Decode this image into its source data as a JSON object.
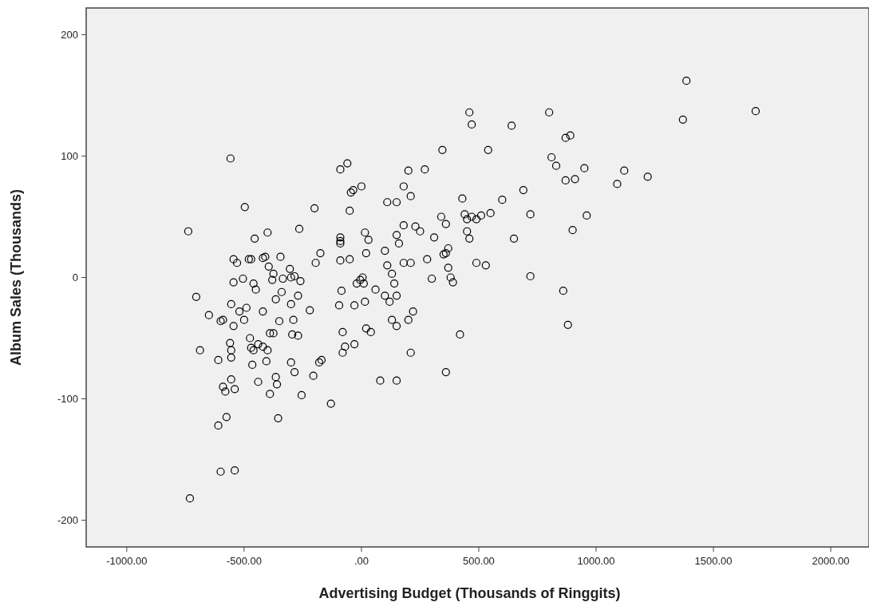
{
  "chart_data": {
    "type": "scatter",
    "xlabel": "Advertising Budget (Thousands of Ringgits)",
    "ylabel": "Album Sales (Thousands)",
    "xlim": [
      -1173,
      2163
    ],
    "ylim": [
      -222,
      222
    ],
    "xticks": [
      {
        "value": -1000,
        "label": "-1000.00"
      },
      {
        "value": -500,
        "label": "-500.00"
      },
      {
        "value": 0,
        "label": ".00"
      },
      {
        "value": 500,
        "label": "500.00"
      },
      {
        "value": 1000,
        "label": "1000.00"
      },
      {
        "value": 1500,
        "label": "1500.00"
      },
      {
        "value": 2000,
        "label": "2000.00"
      }
    ],
    "yticks": [
      -200,
      -100,
      0,
      100,
      200
    ],
    "grid": false,
    "marker": "circle",
    "series": [
      {
        "color": "#000000",
        "x": [
          -738,
          -558,
          -497,
          -704,
          -688,
          -731,
          -600,
          -540,
          -610,
          -575,
          -355,
          -255,
          -130,
          -650,
          -590,
          -600,
          -555,
          -545,
          -545,
          -530,
          -505,
          -490,
          -500,
          -480,
          -470,
          -460,
          -450,
          -455,
          -400,
          -420,
          -410,
          -395,
          -380,
          -375,
          -345,
          -335,
          -300,
          -305,
          -285,
          -265,
          -260,
          -200,
          -175,
          -195,
          -590,
          -580,
          -555,
          -540,
          -560,
          -555,
          -545,
          -520,
          -555,
          -475,
          -470,
          -460,
          -440,
          -420,
          -405,
          -400,
          -390,
          -375,
          -420,
          -365,
          -340,
          -350,
          -300,
          -295,
          -290,
          -270,
          -270,
          -220,
          -300,
          -285,
          -205,
          -180,
          -170,
          -365,
          -360,
          -390,
          -465,
          -440,
          -610,
          -90,
          -60,
          -45,
          -35,
          0,
          -50,
          -90,
          -90,
          -90,
          -90,
          -50,
          -85,
          -95,
          -80,
          -80,
          -70,
          -30,
          20,
          40,
          -20,
          -5,
          5,
          10,
          15,
          -30,
          15,
          30,
          20,
          60,
          80,
          100,
          110,
          150,
          180,
          200,
          210,
          180,
          150,
          160,
          110,
          130,
          140,
          150,
          100,
          120,
          150,
          130,
          180,
          210,
          200,
          220,
          210,
          150,
          270,
          250,
          230,
          280,
          300,
          310,
          340,
          360,
          345,
          350,
          360,
          370,
          380,
          390,
          370,
          360,
          420,
          430,
          440,
          450,
          450,
          460,
          470,
          490,
          510,
          550,
          600,
          460,
          470,
          540,
          640,
          490,
          530,
          650,
          690,
          720,
          720,
          800,
          810,
          830,
          870,
          890,
          870,
          910,
          950,
          960,
          900,
          860,
          880,
          1090,
          1120,
          1220,
          1370,
          1385,
          1680
        ],
        "values": [
          38,
          98,
          58,
          -16,
          -60,
          -182,
          -160,
          -159,
          -122,
          -115,
          -116,
          -97,
          -104,
          -31,
          -35,
          -36,
          -22,
          -4,
          15,
          12,
          -1,
          -25,
          -35,
          15,
          15,
          -5,
          -10,
          32,
          37,
          16,
          17,
          9,
          -2,
          3,
          17,
          -1,
          0,
          7,
          1,
          40,
          -3,
          57,
          20,
          12,
          -90,
          -94,
          -84,
          -92,
          -54,
          -60,
          -40,
          -28,
          -66,
          -50,
          -58,
          -60,
          -55,
          -57,
          -69,
          -60,
          -46,
          -46,
          -28,
          -18,
          -12,
          -36,
          -22,
          -47,
          -35,
          -15,
          -48,
          -27,
          -70,
          -78,
          -81,
          -70,
          -68,
          -82,
          -88,
          -96,
          -72,
          -86,
          -68,
          89,
          94,
          70,
          72,
          75,
          55,
          33,
          30,
          28,
          14,
          15,
          -11,
          -23,
          -45,
          -62,
          -57,
          -55,
          -42,
          -45,
          -5,
          -2,
          0,
          -5,
          -20,
          -23,
          37,
          31,
          20,
          -10,
          -85,
          22,
          62,
          62,
          75,
          88,
          67,
          43,
          35,
          28,
          10,
          3,
          -5,
          -15,
          -15,
          -20,
          -40,
          -35,
          12,
          12,
          -35,
          -28,
          -62,
          -85,
          89,
          38,
          42,
          15,
          -1,
          33,
          50,
          44,
          105,
          19,
          20,
          24,
          0,
          -4,
          8,
          -78,
          -47,
          65,
          52,
          48,
          38,
          32,
          50,
          48,
          51,
          53,
          64,
          136,
          126,
          105,
          125,
          12,
          10,
          32,
          72,
          52,
          1,
          136,
          99,
          92,
          115,
          117,
          80,
          81,
          90,
          51,
          39,
          -11,
          -39,
          77,
          88,
          83,
          130,
          162,
          137
        ]
      }
    ]
  }
}
